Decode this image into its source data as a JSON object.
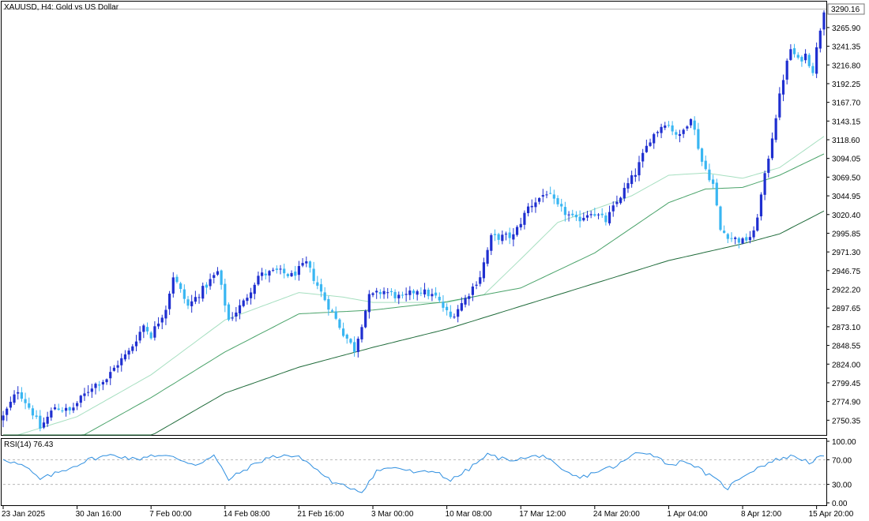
{
  "colors": {
    "background": "#ffffff",
    "frame": "#000000",
    "bull_candle": "#1f2fd0",
    "bear_candle": "#39b6f2",
    "ma_fast": "#a6dfc0",
    "ma_mid": "#4aa36a",
    "ma_slow": "#1f6b3a",
    "rsi_line": "#2f8fe0",
    "level_line": "#b8b8b8",
    "current_price_box": "#ffffff"
  },
  "chart_data": [
    {
      "type": "candlestick",
      "title": "XAUUSD, H4:  Gold vs US Dollar",
      "symbol": "XAUUSD",
      "timeframe": "H4",
      "description": "Gold vs US Dollar",
      "current_price": "3290.16",
      "y_ticks": [
        "3265.90",
        "3241.35",
        "3216.80",
        "3192.25",
        "3167.70",
        "3143.15",
        "3118.60",
        "3094.05",
        "3069.50",
        "3044.95",
        "3020.40",
        "2995.85",
        "2971.30",
        "2946.75",
        "2922.20",
        "2897.65",
        "2873.10",
        "2848.55",
        "2824.00",
        "2799.45",
        "2774.90",
        "2750.35"
      ],
      "ylim": [
        2731,
        3300
      ],
      "x_ticks": [
        "23 Jan 2025",
        "30 Jan 16:00",
        "7 Feb 00:00",
        "14 Feb 08:00",
        "21 Feb 16:00",
        "3 Mar 00:00",
        "10 Mar 08:00",
        "17 Mar 12:00",
        "24 Mar 20:00",
        "1 Apr 04:00",
        "8 Apr 12:00",
        "15 Apr 20:00"
      ],
      "x_tick_index": [
        0,
        20,
        40,
        60,
        80,
        100,
        120,
        140,
        160,
        180,
        200,
        220
      ],
      "bar_count": 223,
      "price_anchors": [
        [
          0,
          2755
        ],
        [
          4,
          2790
        ],
        [
          8,
          2760
        ],
        [
          10,
          2740
        ],
        [
          14,
          2768
        ],
        [
          18,
          2762
        ],
        [
          24,
          2795
        ],
        [
          28,
          2805
        ],
        [
          31,
          2825
        ],
        [
          34,
          2840
        ],
        [
          38,
          2875
        ],
        [
          40,
          2862
        ],
        [
          44,
          2898
        ],
        [
          46,
          2940
        ],
        [
          50,
          2900
        ],
        [
          54,
          2922
        ],
        [
          58,
          2945
        ],
        [
          61,
          2882
        ],
        [
          65,
          2905
        ],
        [
          69,
          2940
        ],
        [
          74,
          2946
        ],
        [
          78,
          2940
        ],
        [
          82,
          2956
        ],
        [
          86,
          2918
        ],
        [
          92,
          2865
        ],
        [
          95,
          2843
        ],
        [
          99,
          2912
        ],
        [
          103,
          2920
        ],
        [
          108,
          2910
        ],
        [
          112,
          2922
        ],
        [
          117,
          2912
        ],
        [
          121,
          2885
        ],
        [
          125,
          2910
        ],
        [
          129,
          2940
        ],
        [
          132,
          2990
        ],
        [
          138,
          2992
        ],
        [
          142,
          3030
        ],
        [
          147,
          3050
        ],
        [
          150,
          3030
        ],
        [
          155,
          3012
        ],
        [
          159,
          3025
        ],
        [
          163,
          3012
        ],
        [
          167,
          3045
        ],
        [
          171,
          3075
        ],
        [
          175,
          3120
        ],
        [
          179,
          3142
        ],
        [
          183,
          3122
        ],
        [
          186,
          3150
        ],
        [
          189,
          3090
        ],
        [
          192,
          3060
        ],
        [
          194,
          3000
        ],
        [
          197,
          2990
        ],
        [
          200,
          2985
        ],
        [
          203,
          2995
        ],
        [
          206,
          3070
        ],
        [
          209,
          3150
        ],
        [
          211,
          3200
        ],
        [
          213,
          3238
        ],
        [
          215,
          3222
        ],
        [
          217,
          3230
        ],
        [
          219,
          3210
        ],
        [
          221,
          3265
        ],
        [
          222,
          3290
        ]
      ],
      "moving_averages": [
        {
          "period_role": "fast",
          "anchors": [
            [
              0,
              2725
            ],
            [
              20,
              2755
            ],
            [
              40,
              2810
            ],
            [
              60,
              2882
            ],
            [
              80,
              2918
            ],
            [
              92,
              2912
            ],
            [
              100,
              2905
            ],
            [
              120,
              2905
            ],
            [
              130,
              2915
            ],
            [
              140,
              2962
            ],
            [
              150,
              3010
            ],
            [
              170,
              3045
            ],
            [
              180,
              3072
            ],
            [
              190,
              3075
            ],
            [
              200,
              3068
            ],
            [
              210,
              3082
            ],
            [
              222,
              3123
            ]
          ]
        },
        {
          "period_role": "mid",
          "anchors": [
            [
              0,
              2700
            ],
            [
              20,
              2726
            ],
            [
              40,
              2780
            ],
            [
              60,
              2840
            ],
            [
              80,
              2890
            ],
            [
              100,
              2895
            ],
            [
              120,
              2906
            ],
            [
              140,
              2924
            ],
            [
              160,
              2970
            ],
            [
              180,
              3036
            ],
            [
              190,
              3054
            ],
            [
              200,
              3056
            ],
            [
              210,
              3072
            ],
            [
              222,
              3100
            ]
          ]
        },
        {
          "period_role": "slow",
          "anchors": [
            [
              0,
              2660
            ],
            [
              40,
              2730
            ],
            [
              60,
              2786
            ],
            [
              80,
              2820
            ],
            [
              100,
              2846
            ],
            [
              120,
              2870
            ],
            [
              140,
              2900
            ],
            [
              160,
              2930
            ],
            [
              180,
              2960
            ],
            [
              200,
              2982
            ],
            [
              210,
              2995
            ],
            [
              222,
              3025
            ]
          ]
        }
      ]
    },
    {
      "type": "line",
      "title": "RSI(14) 76.43",
      "indicator": "RSI(14)",
      "last_value": "76.43",
      "y_ticks": [
        "100.00",
        "70.00",
        "30.00",
        "0.00"
      ],
      "levels": [
        70,
        30
      ],
      "ylim": [
        0,
        100
      ],
      "rsi_anchors": [
        [
          0,
          72
        ],
        [
          6,
          58
        ],
        [
          10,
          38
        ],
        [
          16,
          52
        ],
        [
          24,
          72
        ],
        [
          30,
          78
        ],
        [
          36,
          70
        ],
        [
          40,
          78
        ],
        [
          46,
          74
        ],
        [
          52,
          62
        ],
        [
          57,
          76
        ],
        [
          61,
          38
        ],
        [
          66,
          56
        ],
        [
          71,
          72
        ],
        [
          76,
          78
        ],
        [
          81,
          72
        ],
        [
          86,
          48
        ],
        [
          90,
          30
        ],
        [
          94,
          25
        ],
        [
          97,
          18
        ],
        [
          101,
          52
        ],
        [
          106,
          58
        ],
        [
          112,
          48
        ],
        [
          117,
          52
        ],
        [
          121,
          36
        ],
        [
          126,
          55
        ],
        [
          131,
          78
        ],
        [
          136,
          70
        ],
        [
          141,
          72
        ],
        [
          146,
          78
        ],
        [
          151,
          52
        ],
        [
          156,
          40
        ],
        [
          161,
          52
        ],
        [
          166,
          60
        ],
        [
          171,
          80
        ],
        [
          175,
          82
        ],
        [
          180,
          62
        ],
        [
          185,
          68
        ],
        [
          189,
          52
        ],
        [
          193,
          36
        ],
        [
          196,
          24
        ],
        [
          200,
          44
        ],
        [
          205,
          60
        ],
        [
          210,
          72
        ],
        [
          214,
          76
        ],
        [
          218,
          66
        ],
        [
          222,
          76
        ]
      ]
    }
  ]
}
